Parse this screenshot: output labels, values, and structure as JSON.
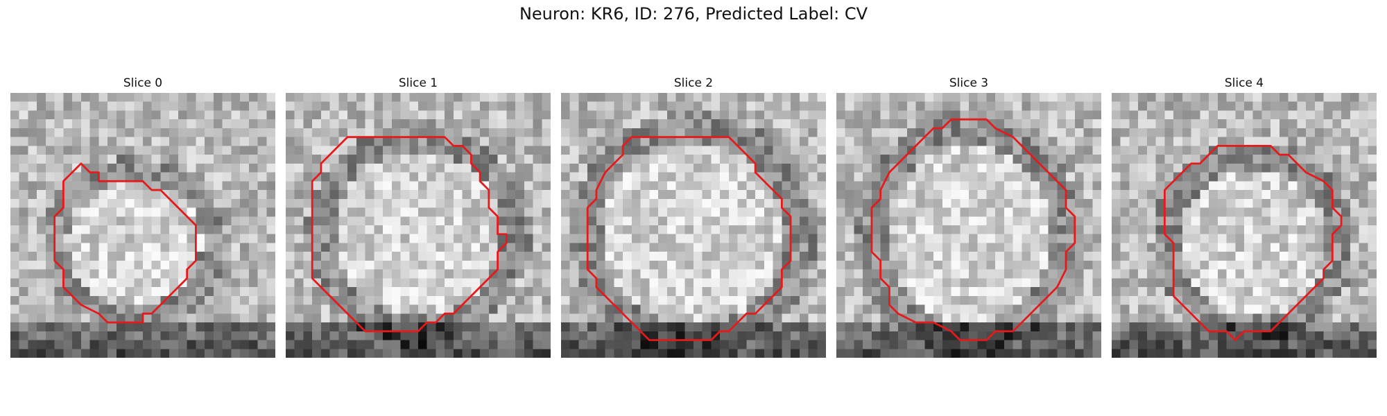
{
  "figure": {
    "title": "Neuron: KR6, ID: 276, Predicted Label: CV"
  },
  "contour_color": "#e41a1c",
  "grid_size": 30,
  "slices": [
    {
      "title": "Slice 0",
      "seed": 11,
      "contour": [
        [
          8,
          8
        ],
        [
          9,
          9
        ],
        [
          10,
          9
        ],
        [
          10,
          10
        ],
        [
          15,
          10
        ],
        [
          16,
          11
        ],
        [
          17,
          11
        ],
        [
          18,
          12
        ],
        [
          19,
          13
        ],
        [
          20,
          14
        ],
        [
          21,
          15
        ],
        [
          21,
          19
        ],
        [
          20,
          20
        ],
        [
          20,
          21
        ],
        [
          19,
          22
        ],
        [
          18,
          23
        ],
        [
          17,
          24
        ],
        [
          17,
          24
        ],
        [
          16,
          25
        ],
        [
          15,
          25
        ],
        [
          15,
          26
        ],
        [
          11,
          26
        ],
        [
          10,
          25
        ],
        [
          8,
          24
        ],
        [
          6,
          22
        ],
        [
          6,
          20
        ],
        [
          5,
          19
        ],
        [
          5,
          14
        ],
        [
          6,
          13
        ],
        [
          6,
          10
        ],
        [
          7,
          9
        ]
      ],
      "ring": [
        14,
        17,
        9,
        8.5
      ]
    },
    {
      "title": "Slice 1",
      "seed": 23,
      "contour": [
        [
          8,
          5
        ],
        [
          18,
          5
        ],
        [
          19,
          6
        ],
        [
          20,
          6
        ],
        [
          21,
          7
        ],
        [
          21,
          8
        ],
        [
          22,
          9
        ],
        [
          22,
          9
        ],
        [
          22,
          10
        ],
        [
          23,
          11
        ],
        [
          23,
          13
        ],
        [
          24,
          14
        ],
        [
          24,
          16
        ],
        [
          25,
          16
        ],
        [
          25,
          17
        ],
        [
          24,
          18
        ],
        [
          24,
          20
        ],
        [
          23,
          21
        ],
        [
          22,
          22
        ],
        [
          22,
          22
        ],
        [
          21,
          23
        ],
        [
          20,
          24
        ],
        [
          19,
          25
        ],
        [
          18,
          25
        ],
        [
          17,
          26
        ],
        [
          16,
          26
        ],
        [
          15,
          27
        ],
        [
          9,
          27
        ],
        [
          8,
          26
        ],
        [
          7,
          25
        ],
        [
          6,
          24
        ],
        [
          5,
          23
        ],
        [
          4,
          22
        ],
        [
          3,
          21
        ],
        [
          3,
          19
        ],
        [
          3,
          10
        ],
        [
          4,
          9
        ],
        [
          4,
          8
        ],
        [
          6,
          6
        ],
        [
          7,
          5
        ]
      ],
      "ring": [
        15,
        16,
        11,
        11
      ]
    },
    {
      "title": "Slice 2",
      "seed": 37,
      "contour": [
        [
          8,
          5
        ],
        [
          19,
          5
        ],
        [
          20,
          6
        ],
        [
          21,
          7
        ],
        [
          22,
          8
        ],
        [
          22,
          9
        ],
        [
          23,
          10
        ],
        [
          24,
          11
        ],
        [
          25,
          12
        ],
        [
          25,
          13
        ],
        [
          26,
          14
        ],
        [
          26,
          19
        ],
        [
          25,
          20
        ],
        [
          25,
          22
        ],
        [
          24,
          23
        ],
        [
          23,
          24
        ],
        [
          22,
          25
        ],
        [
          21,
          25
        ],
        [
          20,
          26
        ],
        [
          19,
          27
        ],
        [
          18,
          27
        ],
        [
          17,
          28
        ],
        [
          10,
          28
        ],
        [
          9,
          27
        ],
        [
          8,
          26
        ],
        [
          7,
          25
        ],
        [
          6,
          24
        ],
        [
          5,
          23
        ],
        [
          4,
          22
        ],
        [
          4,
          21
        ],
        [
          3,
          20
        ],
        [
          3,
          13
        ],
        [
          4,
          12
        ],
        [
          4,
          11
        ],
        [
          5,
          9
        ],
        [
          6,
          8
        ],
        [
          7,
          7
        ],
        [
          7,
          6
        ]
      ],
      "ring": [
        15,
        16,
        12,
        12
      ]
    },
    {
      "title": "Slice 3",
      "seed": 51,
      "contour": [
        [
          13,
          3
        ],
        [
          17,
          3
        ],
        [
          18,
          4
        ],
        [
          20,
          5
        ],
        [
          21,
          6
        ],
        [
          22,
          7
        ],
        [
          23,
          8
        ],
        [
          24,
          9
        ],
        [
          25,
          10
        ],
        [
          26,
          11
        ],
        [
          26,
          13
        ],
        [
          27,
          14
        ],
        [
          27,
          17
        ],
        [
          26,
          18
        ],
        [
          26,
          20
        ],
        [
          25,
          22
        ],
        [
          24,
          23
        ],
        [
          23,
          24
        ],
        [
          22,
          25
        ],
        [
          21,
          26
        ],
        [
          20,
          27
        ],
        [
          18,
          27
        ],
        [
          17,
          28
        ],
        [
          14,
          28
        ],
        [
          13,
          27
        ],
        [
          11,
          26
        ],
        [
          9,
          26
        ],
        [
          7,
          25
        ],
        [
          6,
          24
        ],
        [
          6,
          22
        ],
        [
          5,
          21
        ],
        [
          5,
          19
        ],
        [
          4,
          18
        ],
        [
          4,
          15
        ],
        [
          4,
          13
        ],
        [
          5,
          12
        ],
        [
          5,
          11
        ],
        [
          6,
          9
        ],
        [
          7,
          8
        ],
        [
          8,
          7
        ],
        [
          9,
          6
        ],
        [
          10,
          5
        ],
        [
          11,
          4
        ],
        [
          12,
          4
        ]
      ],
      "ring": [
        15,
        16,
        11,
        12
      ]
    },
    {
      "title": "Slice 4",
      "seed": 67,
      "contour": [
        [
          12,
          6
        ],
        [
          18,
          6
        ],
        [
          19,
          7
        ],
        [
          20,
          7
        ],
        [
          21,
          8
        ],
        [
          22,
          9
        ],
        [
          24,
          10
        ],
        [
          25,
          11
        ],
        [
          25,
          13
        ],
        [
          26,
          14
        ],
        [
          26,
          15
        ],
        [
          25,
          16
        ],
        [
          25,
          19
        ],
        [
          24,
          20
        ],
        [
          24,
          21
        ],
        [
          23,
          22
        ],
        [
          22,
          23
        ],
        [
          21,
          24
        ],
        [
          20,
          25
        ],
        [
          19,
          26
        ],
        [
          18,
          27
        ],
        [
          15,
          27
        ],
        [
          14,
          28
        ],
        [
          13,
          27
        ],
        [
          11,
          27
        ],
        [
          10,
          26
        ],
        [
          9,
          25
        ],
        [
          8,
          24
        ],
        [
          7,
          23
        ],
        [
          7,
          21
        ],
        [
          7,
          17
        ],
        [
          6,
          16
        ],
        [
          6,
          11
        ],
        [
          7,
          10
        ],
        [
          8,
          9
        ],
        [
          9,
          8
        ],
        [
          10,
          8
        ],
        [
          11,
          7
        ]
      ],
      "ring": [
        16,
        17,
        10,
        10
      ]
    }
  ]
}
